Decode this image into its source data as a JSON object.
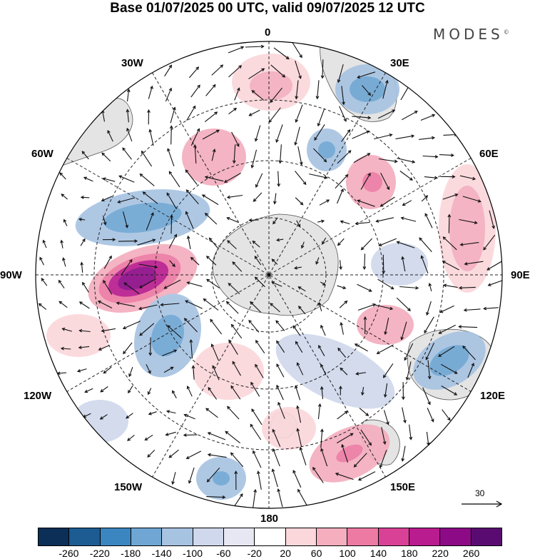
{
  "title": "Base 01/07/2025 00 UTC, valid 09/07/2025 12 UTC",
  "brand": "MODES",
  "brand_mark": "©",
  "longitude_labels": {
    "lon0": "0",
    "lon30e": "30E",
    "lon60e": "60E",
    "lon90e": "90E",
    "lon120e": "120E",
    "lon150e": "150E",
    "lon180": "180",
    "lon150w": "150W",
    "lon120w": "120W",
    "lon90w": "90W",
    "lon60w": "60W",
    "lon30w": "30W"
  },
  "reference_vector": "30",
  "colorbar": {
    "labels": [
      "-260",
      "-220",
      "-180",
      "-140",
      "-100",
      "-60",
      "-20",
      "20",
      "60",
      "100",
      "140",
      "180",
      "220",
      "260"
    ],
    "colors": [
      "#0b2f57",
      "#1d5c92",
      "#3b86c0",
      "#6fa6d3",
      "#a7c3e2",
      "#cfd8ec",
      "#e7e6f3",
      "#ffffff",
      "#fbd7db",
      "#f4aebe",
      "#ec7aa3",
      "#d84196",
      "#b91c8e",
      "#8c0a86",
      "#5a0b72"
    ]
  },
  "map_style": {
    "land_color": "#e4e4e4",
    "coast_color": "#555555",
    "grid_color": "#222222"
  }
}
